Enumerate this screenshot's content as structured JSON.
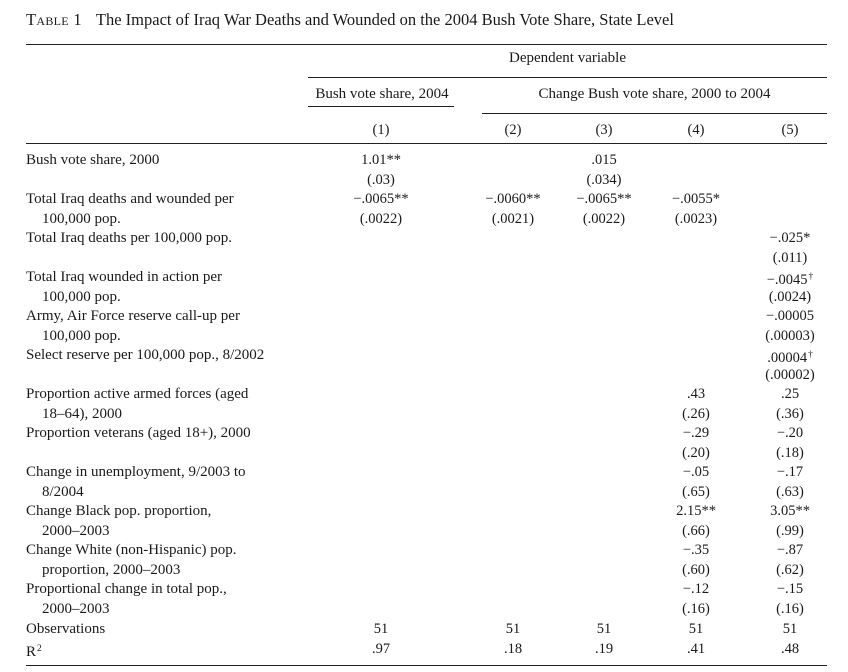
{
  "table": {
    "label": "Table 1",
    "title": "The Impact of Iraq War Deaths and Wounded on the 2004 Bush Vote Share, State Level",
    "dependent_variable": "Dependent variable",
    "group_a": "Bush vote share, 2004",
    "group_b": "Change Bush vote share, 2000 to 2004",
    "columns": [
      "(1)",
      "(2)",
      "(3)",
      "(4)",
      "(5)"
    ]
  },
  "rows": [
    {
      "label1": "Bush vote share, 2000",
      "label2": "",
      "vals": [
        "1.01",
        "",
        ".015",
        "",
        ""
      ],
      "sig": [
        "**",
        "",
        "",
        "",
        ""
      ],
      "se": [
        "(.03)",
        "",
        "(.034)",
        "",
        ""
      ]
    },
    {
      "label1": "Total Iraq deaths and wounded per",
      "label2": "100,000 pop.",
      "vals": [
        "−.0065",
        "−.0060",
        "−.0065",
        "−.0055",
        ""
      ],
      "sig": [
        "**",
        "**",
        "**",
        "*",
        ""
      ],
      "se": [
        "(.0022)",
        "(.0021)",
        "(.0022)",
        "(.0023)",
        ""
      ]
    },
    {
      "label1": "Total Iraq deaths per 100,000 pop.",
      "label2": "",
      "vals": [
        "",
        "",
        "",
        "",
        "−.025"
      ],
      "sig": [
        "",
        "",
        "",
        "",
        "*"
      ],
      "se": [
        "",
        "",
        "",
        "",
        "(.011)"
      ]
    },
    {
      "label1": "Total Iraq wounded in action per",
      "label2": "100,000 pop.",
      "vals": [
        "",
        "",
        "",
        "",
        "−.0045"
      ],
      "sig": [
        "",
        "",
        "",
        "",
        "†"
      ],
      "se": [
        "",
        "",
        "",
        "",
        "(.0024)"
      ]
    },
    {
      "label1": "Army, Air Force reserve call-up per",
      "label2": "100,000 pop.",
      "vals": [
        "",
        "",
        "",
        "",
        "−.00005"
      ],
      "sig": [
        "",
        "",
        "",
        "",
        ""
      ],
      "se": [
        "",
        "",
        "",
        "",
        "(.00003)"
      ]
    },
    {
      "label1": "Select reserve per 100,000 pop., 8/2002",
      "label2": "",
      "vals": [
        "",
        "",
        "",
        "",
        ".00004"
      ],
      "sig": [
        "",
        "",
        "",
        "",
        "†"
      ],
      "se": [
        "",
        "",
        "",
        "",
        "(.00002)"
      ]
    },
    {
      "label1": "Proportion active armed forces (aged",
      "label2": "18–64), 2000",
      "vals": [
        "",
        "",
        "",
        ".43",
        ".25"
      ],
      "sig": [
        "",
        "",
        "",
        "",
        ""
      ],
      "se": [
        "",
        "",
        "",
        "(.26)",
        "(.36)"
      ]
    },
    {
      "label1": "Proportion veterans (aged 18+), 2000",
      "label2": "",
      "vals": [
        "",
        "",
        "",
        "−.29",
        "−.20"
      ],
      "sig": [
        "",
        "",
        "",
        "",
        ""
      ],
      "se": [
        "",
        "",
        "",
        "(.20)",
        "(.18)"
      ]
    },
    {
      "label1": "Change in unemployment, 9/2003 to",
      "label2": "8/2004",
      "vals": [
        "",
        "",
        "",
        "−.05",
        "−.17"
      ],
      "sig": [
        "",
        "",
        "",
        "",
        ""
      ],
      "se": [
        "",
        "",
        "",
        "(.65)",
        "(.63)"
      ]
    },
    {
      "label1": "Change Black pop. proportion,",
      "label2": "2000–2003",
      "vals": [
        "",
        "",
        "",
        "2.15",
        "3.05"
      ],
      "sig": [
        "",
        "",
        "",
        "**",
        "**"
      ],
      "se": [
        "",
        "",
        "",
        "(.66)",
        "(.99)"
      ]
    },
    {
      "label1": "Change White (non-Hispanic) pop.",
      "label2": "proportion, 2000–2003",
      "vals": [
        "",
        "",
        "",
        "−.35",
        "−.87"
      ],
      "sig": [
        "",
        "",
        "",
        "",
        ""
      ],
      "se": [
        "",
        "",
        "",
        "(.60)",
        "(.62)"
      ]
    },
    {
      "label1": "Proportional change in total pop.,",
      "label2": "2000–2003",
      "vals": [
        "",
        "",
        "",
        "−.12",
        "−.15"
      ],
      "sig": [
        "",
        "",
        "",
        "",
        ""
      ],
      "se": [
        "",
        "",
        "",
        "(.16)",
        "(.16)"
      ]
    }
  ],
  "observations": {
    "label": "Observations",
    "vals": [
      "51",
      "51",
      "51",
      "51",
      "51"
    ]
  },
  "r2": {
    "label": "R",
    "label_sup": "2",
    "vals": [
      ".97",
      ".18",
      ".19",
      ".41",
      ".48"
    ]
  }
}
